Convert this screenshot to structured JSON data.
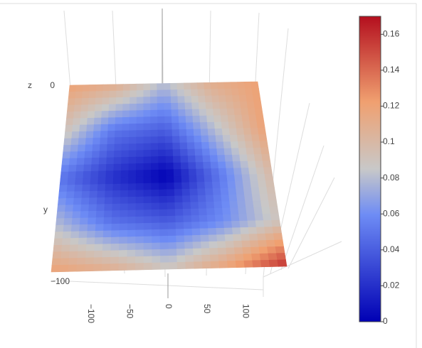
{
  "chart_data": {
    "type": "surface",
    "z": [
      [
        0.12,
        0.11,
        0.08,
        0.11,
        0.12
      ],
      [
        0.09,
        0.05,
        0.04,
        0.08,
        0.12
      ],
      [
        0.05,
        0.02,
        0.0,
        0.05,
        0.1
      ],
      [
        0.08,
        0.05,
        0.04,
        0.06,
        0.09
      ],
      [
        0.12,
        0.11,
        0.09,
        0.12,
        0.16
      ]
    ],
    "clim": [
      0,
      0.17
    ],
    "colorbar_ticks": [
      0,
      0.02,
      0.04,
      0.06,
      0.08,
      0.1,
      0.12,
      0.14,
      0.16
    ],
    "colorscale": [
      [
        0,
        "#0000b4"
      ],
      [
        0.35,
        "#6e8cf5"
      ],
      [
        0.5,
        "#c8c8c8"
      ],
      [
        0.72,
        "#f0a070"
      ],
      [
        1,
        "#b40f1e"
      ]
    ],
    "xlim": [
      -125,
      125
    ],
    "xticks": [
      {
        "value": -100,
        "label": "−100"
      },
      {
        "value": -50,
        "label": "−50"
      },
      0,
      50,
      100
    ],
    "y_label": "y",
    "yticks": [
      {
        "value": -100,
        "label": "−100"
      }
    ],
    "z_label": "z",
    "zticks": [
      0
    ]
  }
}
